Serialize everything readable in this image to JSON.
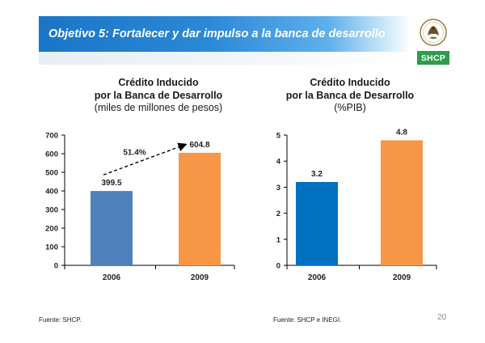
{
  "slide": {
    "banner_title": "Objetivo 5: Fortalecer y dar impulso a la banca de desarrollo",
    "badge": "SHCP",
    "page_number": "20",
    "colors": {
      "banner": "#1a75c7",
      "badge": "#2e9c4a"
    }
  },
  "chart_data": [
    {
      "type": "bar",
      "title_line1": "Crédito Inducido",
      "title_line2": "por la Banca de Desarrollo",
      "subtitle": "(miles de millones de pesos)",
      "categories": [
        "2006",
        "2009"
      ],
      "values": [
        399.5,
        604.8
      ],
      "value_labels": [
        "399.5",
        "604.8"
      ],
      "colors": [
        "#4f81bd",
        "#f79646"
      ],
      "ylim": [
        0,
        700
      ],
      "yticks": [
        "0",
        "100",
        "200",
        "300",
        "400",
        "500",
        "600",
        "700"
      ],
      "annotation": "51.4%",
      "source": "Fuente: SHCP."
    },
    {
      "type": "bar",
      "title_line1": "Crédito Inducido",
      "title_line2": "por la Banca de Desarrollo",
      "subtitle": "(%PIB)",
      "categories": [
        "2006",
        "2009"
      ],
      "values": [
        3.2,
        4.8
      ],
      "value_labels": [
        "3.2",
        "4.8"
      ],
      "colors": [
        "#0070c0",
        "#f79646"
      ],
      "ylim": [
        0,
        5
      ],
      "yticks": [
        "0",
        "1",
        "2",
        "3",
        "4",
        "5"
      ],
      "source": "Fuente: SHCP e INEGI."
    }
  ]
}
